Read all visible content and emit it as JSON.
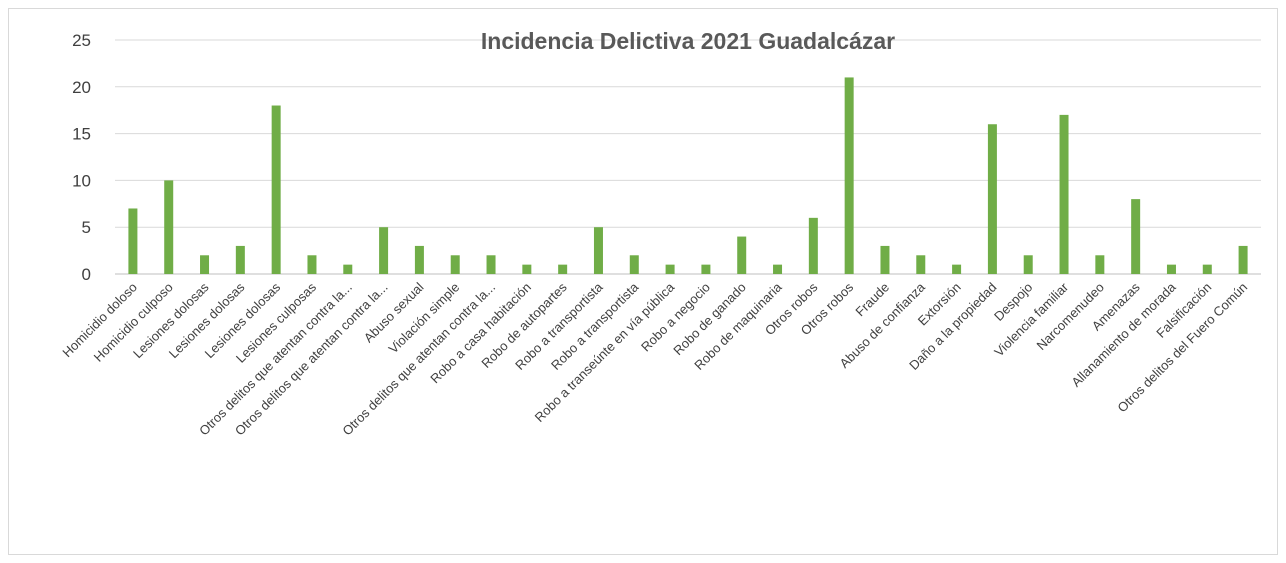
{
  "chart_data": {
    "type": "bar",
    "title": "Incidencia Delictiva 2021 Guadalcázar",
    "xlabel": "",
    "ylabel": "",
    "ylim": [
      0,
      25
    ],
    "yticks": [
      "0",
      "5",
      "10",
      "15",
      "20",
      "25"
    ],
    "grid": true,
    "legend": "none",
    "bar_color": "#70ad47",
    "categories": [
      "Homicidio doloso",
      "Homicidio culposo",
      "Lesiones dolosas",
      "Lesiones dolosas",
      "Lesiones dolosas",
      "Lesiones culposas",
      "Otros delitos que atentan contra la...",
      "Otros delitos que atentan contra la...",
      "Abuso sexual",
      "Violación simple",
      "Otros delitos que atentan contra la...",
      "Robo a casa habitación",
      "Robo de autopartes",
      "Robo a transportista",
      "Robo a transportista",
      "Robo a transeúnte en vía pública",
      "Robo a negocio",
      "Robo de ganado",
      "Robo de maquinaria",
      "Otros robos",
      "Otros robos",
      "Fraude",
      "Abuso de confianza",
      "Extorsión",
      "Daño a la propiedad",
      "Despojo",
      "Violencia familiar",
      "Narcomenudeo",
      "Amenazas",
      "Allanamiento de morada",
      "Falsificación",
      "Otros delitos del Fuero Común"
    ],
    "values": [
      7,
      10,
      2,
      3,
      18,
      2,
      1,
      5,
      3,
      2,
      2,
      1,
      1,
      5,
      2,
      1,
      1,
      4,
      1,
      6,
      21,
      3,
      2,
      1,
      16,
      2,
      17,
      2,
      8,
      1,
      1,
      3
    ]
  }
}
